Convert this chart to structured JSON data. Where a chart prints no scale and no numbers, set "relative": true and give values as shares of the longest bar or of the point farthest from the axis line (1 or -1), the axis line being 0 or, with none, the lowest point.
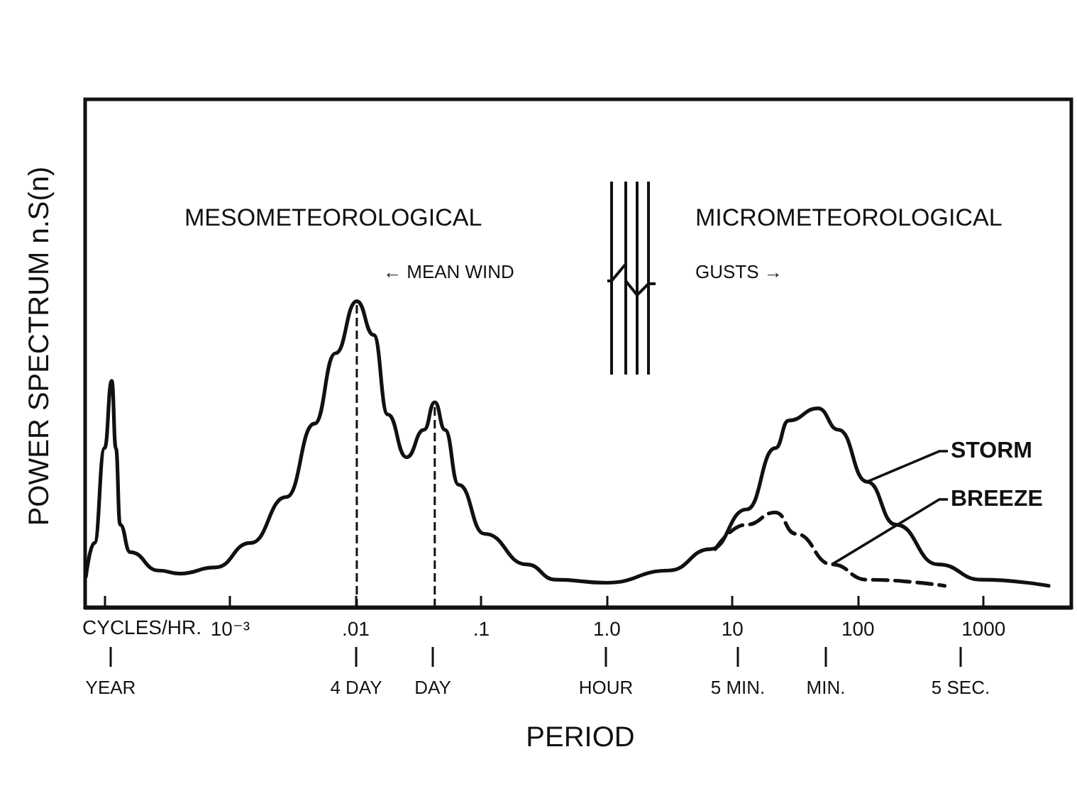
{
  "chart_data": {
    "type": "line",
    "relative": true,
    "xlabel": "CYCLES/HR.",
    "ylabel": "POWER SPECTRUM n.S(n)",
    "log": "x",
    "legend": "right",
    "grid": false,
    "marker": "none",
    "xlim": [
      7e-05,
      5000
    ],
    "xticks": [
      {
        "value": 0.0001,
        "label": null
      },
      {
        "value": 0.001,
        "label": "10⁻³"
      },
      {
        "value": 0.01,
        "label": ".01"
      },
      {
        "value": 0.1,
        "label": ".1"
      },
      {
        "value": 1,
        "label": "1.0"
      },
      10,
      100,
      1000
    ],
    "annotations": [
      "MESOMETEOROLOGICAL",
      "MICROMETEOROLOGICAL",
      "← MEAN WIND",
      "GUSTS →",
      "PERIOD",
      "YEAR",
      "4 DAY",
      "DAY",
      "HOUR",
      "5 MIN.",
      "MIN.",
      "5 SEC."
    ],
    "ref_lines": [
      {
        "axis": "x",
        "value": 0.0102,
        "line_style": "dashed"
      },
      {
        "axis": "x",
        "value": 0.0426,
        "line_style": "dashed"
      }
    ],
    "series": [
      {
        "name": "STORM",
        "color": "#111111",
        "line_style": "solid",
        "x": [
          7.1e-05,
          8.3e-05,
          0.0001,
          0.000114,
          0.000123,
          0.000133,
          0.00016,
          0.00027,
          0.0004,
          0.00076,
          0.00145,
          0.0028,
          0.0047,
          0.0069,
          0.0102,
          0.0139,
          0.018,
          0.0254,
          0.035,
          0.0426,
          0.0514,
          0.066,
          0.106,
          0.23,
          0.39,
          1.0,
          3.1,
          6.7,
          13,
          22,
          28,
          48,
          70,
          118,
          200,
          435,
          960,
          3300
        ],
        "values": [
          0.1,
          0.21,
          0.52,
          0.74,
          0.52,
          0.27,
          0.18,
          0.12,
          0.11,
          0.13,
          0.21,
          0.36,
          0.6,
          0.83,
          1.0,
          0.89,
          0.63,
          0.49,
          0.58,
          0.67,
          0.58,
          0.4,
          0.24,
          0.14,
          0.09,
          0.08,
          0.12,
          0.19,
          0.32,
          0.52,
          0.61,
          0.65,
          0.58,
          0.41,
          0.27,
          0.14,
          0.09,
          0.07
        ]
      },
      {
        "name": "BREEZE",
        "color": "#111111",
        "line_style": "dashed",
        "x": [
          7.3,
          13,
          22,
          32,
          62,
          118,
          490
        ],
        "values": [
          0.19,
          0.27,
          0.31,
          0.24,
          0.14,
          0.09,
          0.07
        ]
      }
    ]
  }
}
